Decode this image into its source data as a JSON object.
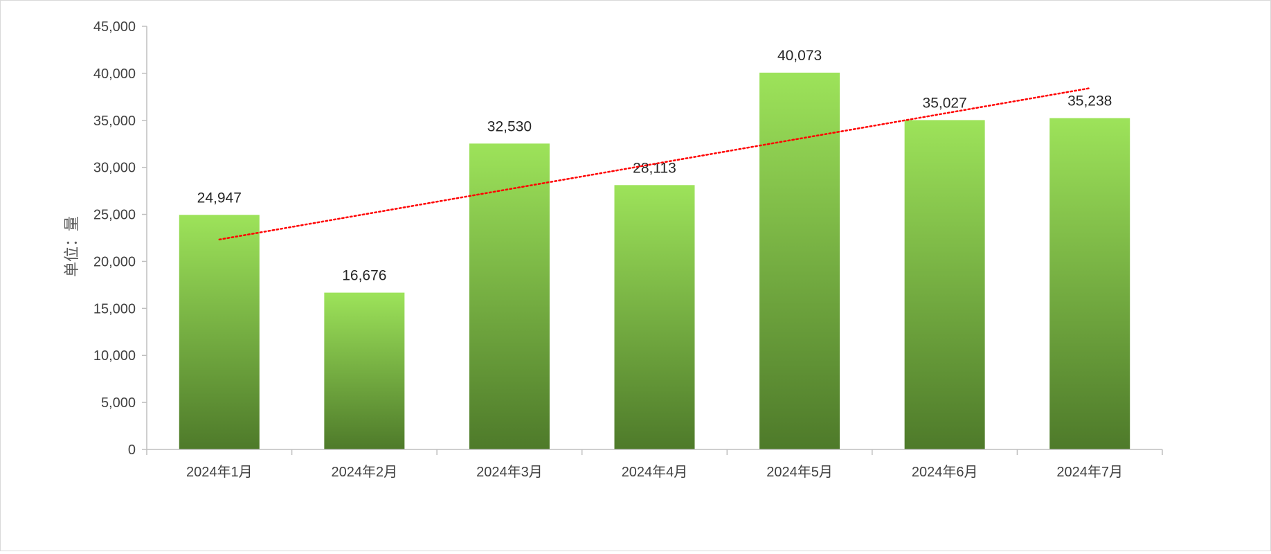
{
  "chart_data": {
    "type": "bar",
    "title": "",
    "xlabel": "",
    "ylabel": "单位：量",
    "categories": [
      "2024年1月",
      "2024年2月",
      "2024年3月",
      "2024年4月",
      "2024年5月",
      "2024年6月",
      "2024年7月"
    ],
    "values": [
      24947,
      16676,
      32530,
      28113,
      40073,
      35027,
      35238
    ],
    "data_labels": [
      "24,947",
      "16,676",
      "32,530",
      "28,113",
      "40,073",
      "35,027",
      "35,238"
    ],
    "ylim": [
      0,
      45000
    ],
    "yticks": [
      0,
      5000,
      10000,
      15000,
      20000,
      25000,
      30000,
      35000,
      40000,
      45000
    ],
    "ytick_labels": [
      "0",
      "5,000",
      "10,000",
      "15,000",
      "20,000",
      "25,000",
      "30,000",
      "35,000",
      "40,000",
      "45,000"
    ],
    "grid": false,
    "legend": "none",
    "trendline": {
      "type": "linear",
      "style": "dotted"
    },
    "colors": {
      "bar_top": "#9de35a",
      "bar_bottom": "#4e7a2a",
      "trendline": "#ff0000",
      "axis": "#bfbfbf"
    }
  }
}
